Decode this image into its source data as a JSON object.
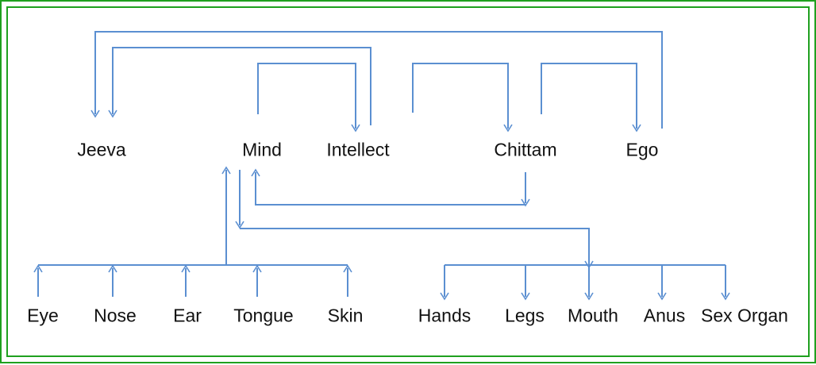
{
  "diagram": {
    "line_color": "#5b8fd1",
    "border_color": "#1fa01f",
    "top_nodes": {
      "jeeva": "Jeeva",
      "mind": "Mind",
      "intellect": "Intellect",
      "chittam": "Chittam",
      "ego": "Ego"
    },
    "senses": {
      "eye": "Eye",
      "nose": "Nose",
      "ear": "Ear",
      "tongue": "Tongue",
      "skin": "Skin"
    },
    "organs": {
      "hands": "Hands",
      "legs": "Legs",
      "mouth": "Mouth",
      "anus": "Anus",
      "sex_organ": "Sex Organ"
    }
  }
}
